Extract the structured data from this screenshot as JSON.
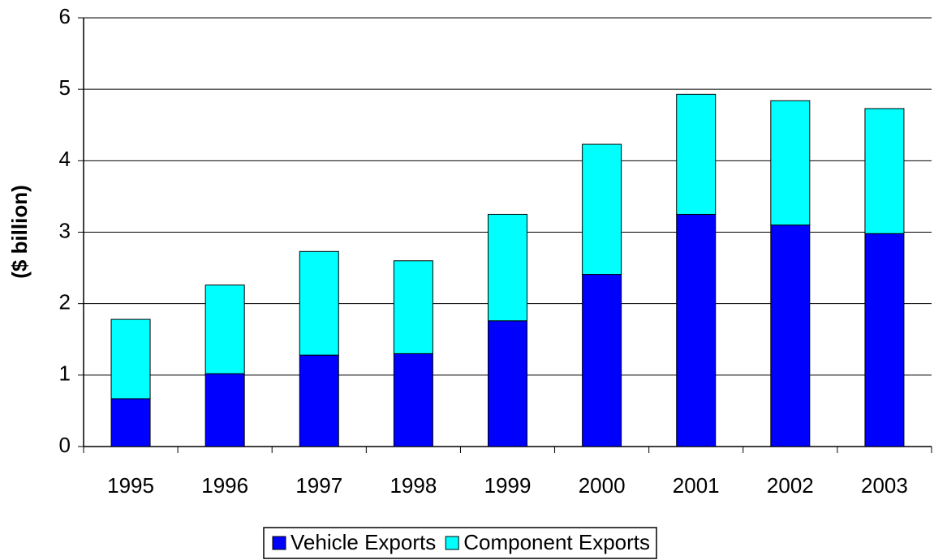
{
  "chart_data": {
    "type": "stacked_bar",
    "y_label": "($ billion)",
    "categories": [
      "1995",
      "1996",
      "1997",
      "1998",
      "1999",
      "2000",
      "2001",
      "2002",
      "2003"
    ],
    "series": [
      {
        "name": "Vehicle Exports",
        "color": "#0000ff",
        "values": [
          0.67,
          1.02,
          1.28,
          1.3,
          1.76,
          2.41,
          3.25,
          3.1,
          2.98
        ]
      },
      {
        "name": "Component Exports",
        "color": "#00ffff",
        "values": [
          1.11,
          1.24,
          1.45,
          1.3,
          1.49,
          1.82,
          1.68,
          1.74,
          1.75
        ]
      }
    ],
    "ylim": [
      0,
      6
    ],
    "yticks": [
      0,
      1,
      2,
      3,
      4,
      5,
      6
    ],
    "grid": true,
    "legend": "bottom"
  }
}
